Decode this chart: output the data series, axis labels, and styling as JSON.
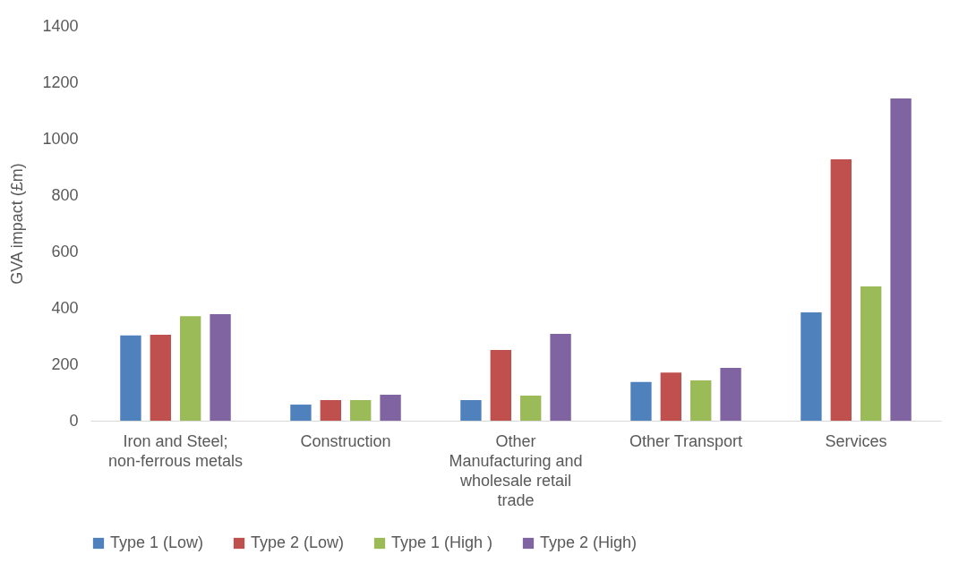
{
  "chart_data": {
    "type": "bar",
    "ylabel": "GVA impact (£m)",
    "categories": [
      "Iron and Steel; non-ferrous metals",
      "Construction",
      "Other Manufacturing and wholesale retail trade",
      "Other Transport",
      "Services"
    ],
    "series": [
      {
        "name": "Type 1 (Low)",
        "color": "#4f81bd",
        "values": [
          302,
          57,
          73,
          137,
          384
        ]
      },
      {
        "name": "Type 2 (Low)",
        "color": "#c0504d",
        "values": [
          305,
          73,
          251,
          171,
          927
        ]
      },
      {
        "name": "Type 1 (High )",
        "color": "#9bbb59",
        "values": [
          371,
          73,
          89,
          143,
          476
        ]
      },
      {
        "name": "Type 2 (High)",
        "color": "#8064a2",
        "values": [
          378,
          92,
          308,
          187,
          1143
        ]
      }
    ],
    "ylim": [
      0,
      1400
    ],
    "yticks": [
      0,
      200,
      400,
      600,
      800,
      1000,
      1200,
      1400
    ],
    "grid": false,
    "legend": "bottom"
  }
}
